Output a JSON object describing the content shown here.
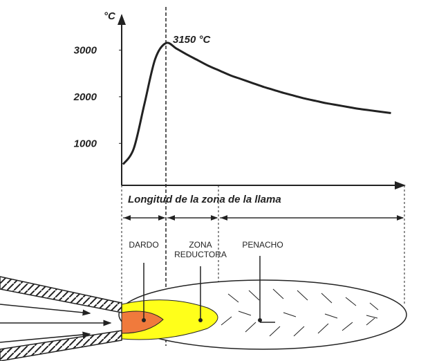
{
  "chart_data": {
    "type": "line",
    "y_label": "°C",
    "x_label": "Longitud de la zona de la llama",
    "peak_label": "3150 °C",
    "categories": [
      null,
      null,
      null,
      null,
      null,
      null,
      null,
      null,
      null,
      null,
      null,
      null,
      null,
      null,
      null,
      null,
      null,
      null,
      null,
      null,
      null,
      null,
      null,
      null,
      null,
      null
    ],
    "values": [
      550,
      890,
      1850,
      2810,
      3150,
      3030,
      2900,
      2780,
      2660,
      2560,
      2460,
      2380,
      2300,
      2220,
      2150,
      2080,
      2020,
      1960,
      1910,
      1860,
      1820,
      1780,
      1740,
      1710,
      1680,
      1650
    ],
    "color": "#222222",
    "ylim": [
      100,
      3700
    ],
    "yticks": [
      1000,
      2000,
      3000
    ]
  },
  "diagram": {
    "zones": [
      {
        "label": [
          "DARDO"
        ]
      },
      {
        "label": [
          "ZONA",
          "REDUCTORA"
        ]
      },
      {
        "label": [
          "PENACHO"
        ]
      }
    ]
  }
}
